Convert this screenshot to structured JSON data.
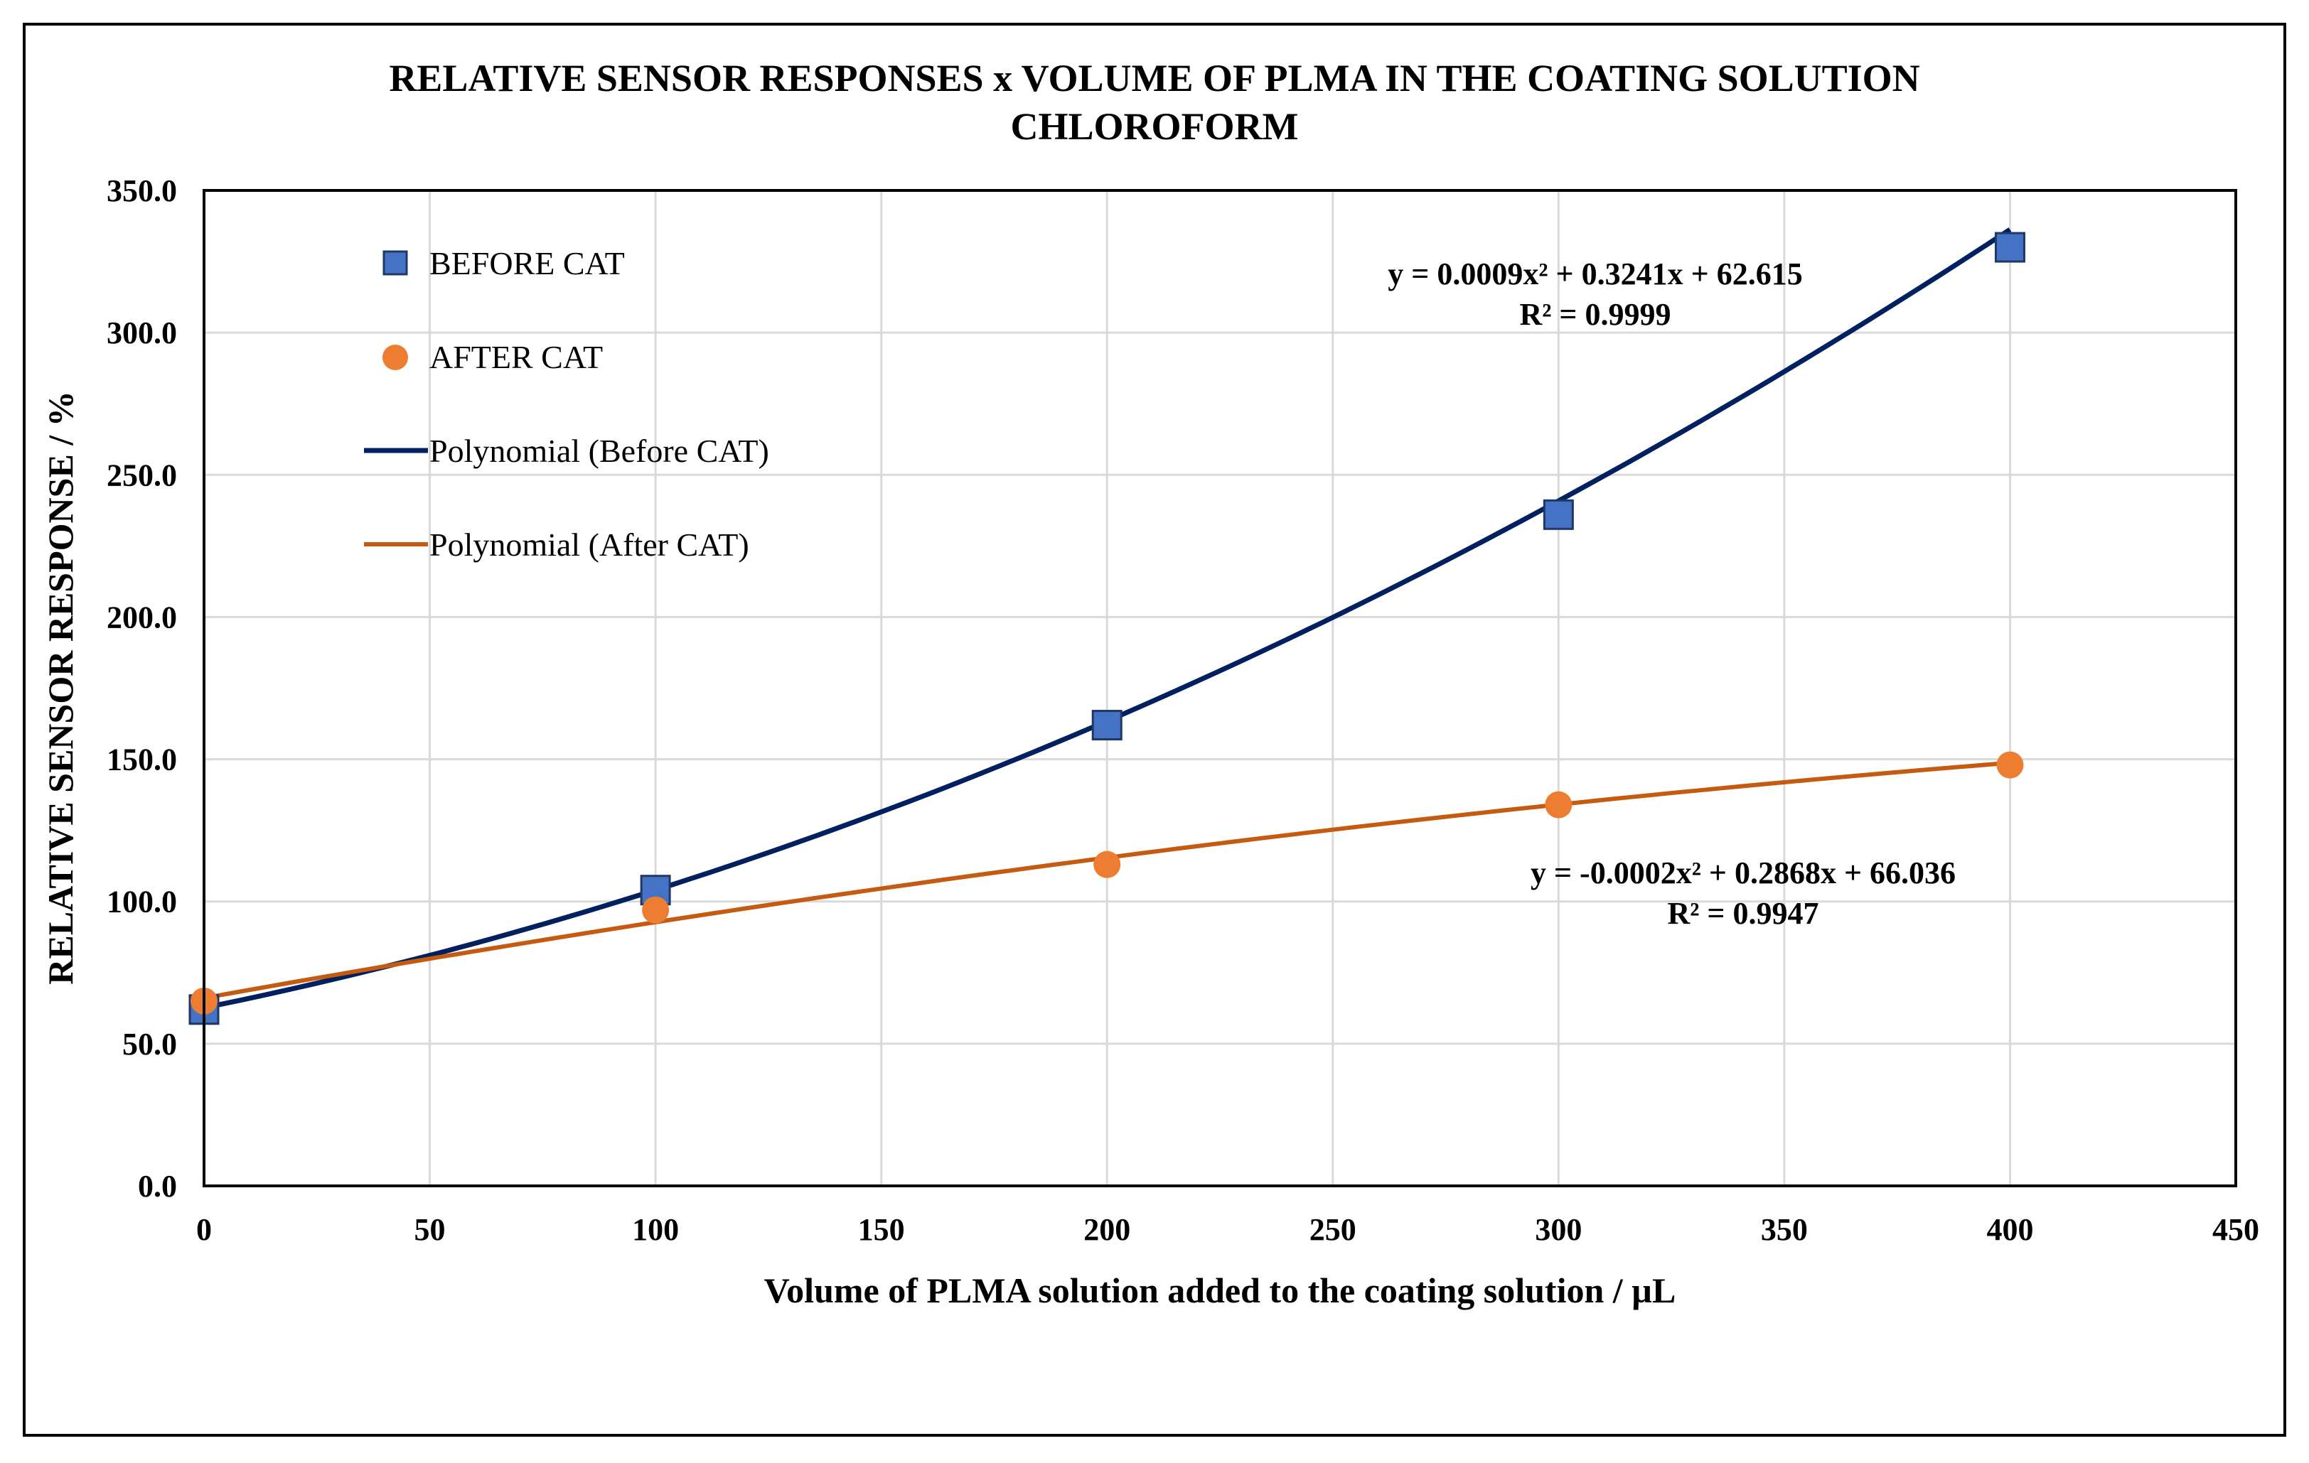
{
  "chart_data": {
    "type": "scatter",
    "title": "RELATIVE  SENSOR RESPONSES x VOLUME OF PLMA IN THE COATING SOLUTION",
    "subtitle": "CHLOROFORM",
    "xlabel": "Volume of PLMA solution added to the coating solution  / µL",
    "ylabel": "RELATIVE  SENSOR RESPONSE / %",
    "xlim": [
      0,
      450
    ],
    "ylim": [
      0,
      350
    ],
    "x_ticks": [
      "0",
      "50",
      "100",
      "150",
      "200",
      "250",
      "300",
      "350",
      "400",
      "450"
    ],
    "y_ticks": [
      "0.0",
      "50.0",
      "100.0",
      "150.0",
      "200.0",
      "250.0",
      "300.0",
      "350.0"
    ],
    "grid": true,
    "legend_position": "top-left",
    "series": [
      {
        "name": "BEFORE CAT",
        "marker": "square",
        "color": "#4472C4",
        "edge_color": "#1F3864",
        "x": [
          0,
          100,
          200,
          300,
          400
        ],
        "y": [
          62,
          104,
          162,
          236,
          330
        ]
      },
      {
        "name": "AFTER CAT",
        "marker": "circle",
        "color": "#ED7D31",
        "x": [
          0,
          100,
          200,
          300,
          400
        ],
        "y": [
          65,
          97,
          113,
          134,
          148
        ]
      }
    ],
    "trendlines": [
      {
        "name": "Polynomial (Before CAT)",
        "color": "#002060",
        "coefficients": [
          0.0009,
          0.3241,
          62.615
        ],
        "x_range": [
          0,
          400
        ],
        "equation": "y = 0.0009x² + 0.3241x + 62.615",
        "r_squared": "R² = 0.9999"
      },
      {
        "name": "Polynomial (After CAT)",
        "color": "#C55A11",
        "coefficients": [
          -0.0002,
          0.2868,
          66.036
        ],
        "x_range": [
          0,
          400
        ],
        "equation": "y = -0.0002x² + 0.2868x + 66.036",
        "r_squared": "R² = 0.9947"
      }
    ]
  }
}
